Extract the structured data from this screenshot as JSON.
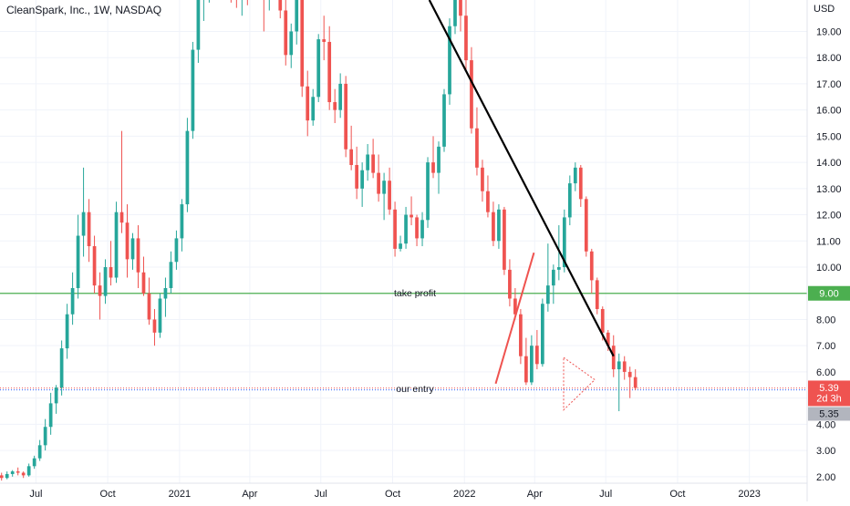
{
  "header": {
    "title": "CleanSpark, Inc., 1W, NASDAQ",
    "currency": "USD"
  },
  "chart_data": {
    "type": "candlestick",
    "ylim": [
      1.75,
      20.2
    ],
    "y_ticks": [
      2,
      3,
      4,
      5,
      6,
      7,
      8,
      9,
      10,
      11,
      12,
      13,
      14,
      15,
      16,
      17,
      18,
      19
    ],
    "y_tick_labels": [
      "2.00",
      "3.00",
      "4.00",
      "5.00",
      "6.00",
      "7.00",
      "8.00",
      "9.00",
      "10.00",
      "11.00",
      "12.00",
      "13.00",
      "14.00",
      "15.00",
      "16.00",
      "17.00",
      "18.00",
      "19.00"
    ],
    "x_range": [
      "2020-05-16",
      "2023-03-16"
    ],
    "x_ticks": [
      {
        "date": "2020-07-01",
        "label": "Jul"
      },
      {
        "date": "2020-10-01",
        "label": "Oct"
      },
      {
        "date": "2021-01-01",
        "label": "2021"
      },
      {
        "date": "2021-04-01",
        "label": "Apr"
      },
      {
        "date": "2021-07-01",
        "label": "Jul"
      },
      {
        "date": "2021-10-01",
        "label": "Oct"
      },
      {
        "date": "2022-01-01",
        "label": "2022"
      },
      {
        "date": "2022-04-01",
        "label": "Apr"
      },
      {
        "date": "2022-07-01",
        "label": "Jul"
      },
      {
        "date": "2022-10-01",
        "label": "Oct"
      },
      {
        "date": "2023-01-01",
        "label": "2023"
      }
    ],
    "candles_first_week": "2020-05-18",
    "candles": [
      [
        2.05,
        2.15,
        1.85,
        1.95
      ],
      [
        1.95,
        2.2,
        1.9,
        2.1
      ],
      [
        2.1,
        2.25,
        2.0,
        2.2
      ],
      [
        2.2,
        2.35,
        2.05,
        2.15
      ],
      [
        2.15,
        2.2,
        1.95,
        2.05
      ],
      [
        2.05,
        2.5,
        2.0,
        2.4
      ],
      [
        2.4,
        2.8,
        2.3,
        2.7
      ],
      [
        2.7,
        3.4,
        2.6,
        3.2
      ],
      [
        3.2,
        4.2,
        3.0,
        3.9
      ],
      [
        3.9,
        5.2,
        3.6,
        4.8
      ],
      [
        4.8,
        5.5,
        4.4,
        5.4
      ],
      [
        5.4,
        7.2,
        5.1,
        6.9
      ],
      [
        6.9,
        8.6,
        6.5,
        8.2
      ],
      [
        8.2,
        9.8,
        7.8,
        9.2
      ],
      [
        9.2,
        12.0,
        8.8,
        11.2
      ],
      [
        11.2,
        13.8,
        10.4,
        12.1
      ],
      [
        12.1,
        12.6,
        10.2,
        10.8
      ],
      [
        10.8,
        11.2,
        9.0,
        9.3
      ],
      [
        9.3,
        9.8,
        8.0,
        8.9
      ],
      [
        8.9,
        10.3,
        8.6,
        10.0
      ],
      [
        10.0,
        11.0,
        9.3,
        9.6
      ],
      [
        9.6,
        12.5,
        9.4,
        12.1
      ],
      [
        12.1,
        15.2,
        11.3,
        11.7
      ],
      [
        11.7,
        12.4,
        9.6,
        10.3
      ],
      [
        10.3,
        11.3,
        9.9,
        11.1
      ],
      [
        11.1,
        11.6,
        9.2,
        9.8
      ],
      [
        9.8,
        10.4,
        8.9,
        9.0
      ],
      [
        9.0,
        9.6,
        7.8,
        8.0
      ],
      [
        8.0,
        8.4,
        7.0,
        7.5
      ],
      [
        7.5,
        9.0,
        7.3,
        8.8
      ],
      [
        8.8,
        9.6,
        8.1,
        9.2
      ],
      [
        9.2,
        10.6,
        9.0,
        10.2
      ],
      [
        10.2,
        11.4,
        9.9,
        11.1
      ],
      [
        11.1,
        12.6,
        10.6,
        12.4
      ],
      [
        12.4,
        15.7,
        12.1,
        15.2
      ],
      [
        15.2,
        18.6,
        14.9,
        18.3
      ],
      [
        18.3,
        21.0,
        17.8,
        20.5
      ],
      [
        20.5,
        21.5,
        19.4,
        20.9
      ],
      [
        20.9,
        22.0,
        20.1,
        21.6
      ],
      [
        21.6,
        22.3,
        20.7,
        21.2
      ],
      [
        21.2,
        21.9,
        20.3,
        21.5
      ],
      [
        21.5,
        22.0,
        20.4,
        20.8
      ],
      [
        20.8,
        21.4,
        20.1,
        20.6
      ],
      [
        20.6,
        21.1,
        19.9,
        20.3
      ],
      [
        20.3,
        20.9,
        19.6,
        20.7
      ],
      [
        20.7,
        21.2,
        20.0,
        20.5
      ],
      [
        20.5,
        21.3,
        20.2,
        21.0
      ],
      [
        21.0,
        21.4,
        20.3,
        20.6
      ],
      [
        20.6,
        21.0,
        19.0,
        20.4
      ],
      [
        20.4,
        21.1,
        19.8,
        20.7
      ],
      [
        20.7,
        21.3,
        20.2,
        20.9
      ],
      [
        20.9,
        21.6,
        19.5,
        19.8
      ],
      [
        19.8,
        20.4,
        17.7,
        18.1
      ],
      [
        18.1,
        19.3,
        17.6,
        19.0
      ],
      [
        19.0,
        20.8,
        18.5,
        20.3
      ],
      [
        20.3,
        20.9,
        16.5,
        16.9
      ],
      [
        16.9,
        17.5,
        15.0,
        15.6
      ],
      [
        15.6,
        16.8,
        15.4,
        16.5
      ],
      [
        16.5,
        18.9,
        16.3,
        18.7
      ],
      [
        18.7,
        19.6,
        17.9,
        18.6
      ],
      [
        18.6,
        19.2,
        16.0,
        16.3
      ],
      [
        16.3,
        16.8,
        15.5,
        16.0
      ],
      [
        16.0,
        17.4,
        15.7,
        17.0
      ],
      [
        17.0,
        17.3,
        14.2,
        14.5
      ],
      [
        14.5,
        15.4,
        13.7,
        13.9
      ],
      [
        13.9,
        14.6,
        12.6,
        13.0
      ],
      [
        13.0,
        14.0,
        12.3,
        13.7
      ],
      [
        13.7,
        14.7,
        13.3,
        14.3
      ],
      [
        14.3,
        14.9,
        13.4,
        13.6
      ],
      [
        13.6,
        14.3,
        12.5,
        12.8
      ],
      [
        12.8,
        13.6,
        11.8,
        13.3
      ],
      [
        13.3,
        13.8,
        12.0,
        12.2
      ],
      [
        12.2,
        12.5,
        10.4,
        10.7
      ],
      [
        10.7,
        11.2,
        10.6,
        10.9
      ],
      [
        10.9,
        12.3,
        10.7,
        12.0
      ],
      [
        12.0,
        12.7,
        11.6,
        11.9
      ],
      [
        11.9,
        12.0,
        10.8,
        11.1
      ],
      [
        11.1,
        12.1,
        10.8,
        11.8
      ],
      [
        11.8,
        14.2,
        11.5,
        14.0
      ],
      [
        14.0,
        15.0,
        13.4,
        13.6
      ],
      [
        13.6,
        14.8,
        12.8,
        14.6
      ],
      [
        14.6,
        16.8,
        14.4,
        16.6
      ],
      [
        16.6,
        19.5,
        16.2,
        19.2
      ],
      [
        19.2,
        22.0,
        18.9,
        21.3
      ],
      [
        21.3,
        21.8,
        19.0,
        19.6
      ],
      [
        19.6,
        20.3,
        17.5,
        17.9
      ],
      [
        17.9,
        18.4,
        15.1,
        15.3
      ],
      [
        15.3,
        16.1,
        13.5,
        13.8
      ],
      [
        13.8,
        14.1,
        12.5,
        12.9
      ],
      [
        12.9,
        13.5,
        11.9,
        12.1
      ],
      [
        12.1,
        12.5,
        10.8,
        11.0
      ],
      [
        11.0,
        12.4,
        10.7,
        12.2
      ],
      [
        12.2,
        12.3,
        9.7,
        9.9
      ],
      [
        9.9,
        10.3,
        8.5,
        8.8
      ],
      [
        8.8,
        9.2,
        8.0,
        8.2
      ],
      [
        8.2,
        8.4,
        6.3,
        6.6
      ],
      [
        6.6,
        7.3,
        5.5,
        5.6
      ],
      [
        5.6,
        7.4,
        5.5,
        7.0
      ],
      [
        7.0,
        7.6,
        6.1,
        6.3
      ],
      [
        6.3,
        8.8,
        6.2,
        8.6
      ],
      [
        8.6,
        10.9,
        8.3,
        9.3
      ],
      [
        9.3,
        10.1,
        8.6,
        9.9
      ],
      [
        9.9,
        11.6,
        9.5,
        10.0
      ],
      [
        10.0,
        12.2,
        9.8,
        11.9
      ],
      [
        11.9,
        13.5,
        11.6,
        13.2
      ],
      [
        13.2,
        14.0,
        12.9,
        13.8
      ],
      [
        13.8,
        13.9,
        12.3,
        12.6
      ],
      [
        12.6,
        12.7,
        10.4,
        10.6
      ],
      [
        10.6,
        10.7,
        9.0,
        9.5
      ],
      [
        9.5,
        9.6,
        8.2,
        8.4
      ],
      [
        8.4,
        8.5,
        7.2,
        7.5
      ],
      [
        7.5,
        7.6,
        6.8,
        7.0
      ],
      [
        7.0,
        7.4,
        5.8,
        6.1
      ],
      [
        6.1,
        6.7,
        4.5,
        6.4
      ],
      [
        6.4,
        6.6,
        5.7,
        6.0
      ],
      [
        6.0,
        6.2,
        5.0,
        5.8
      ],
      [
        5.8,
        6.1,
        5.3,
        5.39
      ]
    ],
    "colors": {
      "up": "#26a69a",
      "down": "#ef5350",
      "take_profit": "#4caf50",
      "trendline": "#000000",
      "entry": "#9598a1"
    },
    "horizontal_levels": [
      {
        "price": 9.0,
        "label": "take profit",
        "tag": "9.00",
        "color": "#4caf50"
      },
      {
        "price": 5.35,
        "label": "our entry",
        "tag": "5.35",
        "color": "#787b86"
      }
    ],
    "current_price": {
      "price": 5.39,
      "label": "5.39",
      "countdown": "2d 3h",
      "color": "#ef5350"
    },
    "trendlines": [
      {
        "from": [
          "2021-11-17",
          20.2
        ],
        "to": [
          "2022-07-11",
          6.6
        ],
        "color": "#000000"
      },
      {
        "from": [
          "2022-02-10",
          5.55
        ],
        "to": [
          "2022-03-31",
          10.55
        ],
        "color": "#ef5350"
      }
    ],
    "triangle_pattern": {
      "points": [
        [
          "2022-05-08",
          6.55
        ],
        [
          "2022-06-17",
          5.7
        ],
        [
          "2022-05-08",
          4.55
        ]
      ],
      "color": "#ef5350"
    }
  }
}
